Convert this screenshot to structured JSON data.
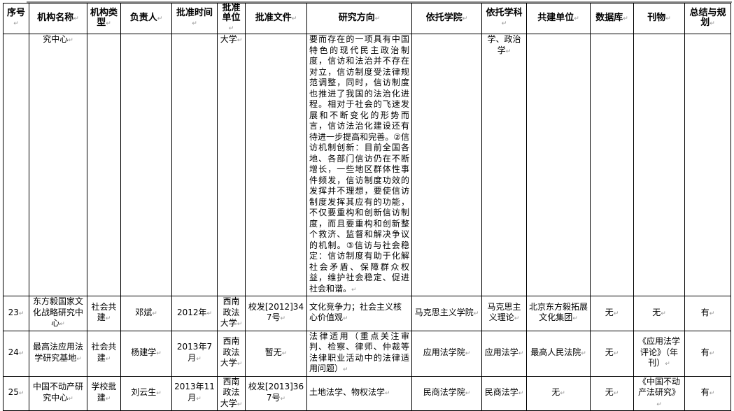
{
  "headers": [
    "序号",
    "机构名称",
    "机构类型",
    "负责人",
    "批准时间",
    "批准单位",
    "批准文件",
    "研究方向",
    "依托学院",
    "依托学科",
    "共建单位",
    "数据库",
    "刊物",
    "总结与规划"
  ],
  "rows": [
    {
      "no": "",
      "name": "究中心",
      "type": "",
      "leader": "",
      "time": "",
      "unit": "大学",
      "doc": "",
      "direction": "要而存在的一项具有中国特色的现代民主政治制度，信访和法治并不存在对立，信访制度受法律规范调整，同时，信访制度也推进了我国的法治化进程。相对于社会的飞速发展和不断变化的形势而言，信访法治化建设还有待进一步提高和完善。②信访机制创新：目前全国各地、各部门信访仍在不断增长，一些地区群体性事件频发，信访制度功效的发挥并不理想，要使信访制度发挥其应有的功能，不仅要重构和创新信访制度，而且要重构和创新整个救济、监督和解决争议的机制。③信访与社会稳定：信访制度有助于化解社会矛盾、保障群众权益，维护社会稳定、促进社会和谐。",
      "college": "",
      "discipline": "学、政治学",
      "partner": "",
      "database": "",
      "journal": "",
      "summary": ""
    },
    {
      "no": "23",
      "name": "东方毅国家文化战略研究中心",
      "type": "社会共建",
      "leader": "邓斌",
      "time": "2012年",
      "unit": "西南政法大学",
      "doc": "校发[2012]347号",
      "direction": "文化竞争力；社会主义核心价值观",
      "college": "马克思主义学院",
      "discipline": "马克思主义理论",
      "partner": "北京东方毅拓展文化集团",
      "database": "无",
      "journal": "无",
      "summary": "有"
    },
    {
      "no": "24",
      "name": "最高法应用法学研究基地",
      "type": "社会共建",
      "leader": "杨建学",
      "time": "2013年7月",
      "unit": "西南政法大学",
      "doc": "暂无",
      "direction": "法律适用（重点关注审判、检察、律师、仲裁等法律职业活动中的法律适用问题）",
      "college": "应用法学院",
      "discipline": "应用法学",
      "partner": "最高人民法院",
      "database": "无",
      "journal": "《应用法学评论》（年刊）",
      "summary": "有"
    },
    {
      "no": "25",
      "name": "中国不动产研究中心",
      "type": "学校批建",
      "leader": "刘云生",
      "time": "2013年11月",
      "unit": "西南政法大学",
      "doc": "校发[2013]367号",
      "direction": "土地法学、物权法学",
      "college": "民商法学院",
      "discipline": "民商法学",
      "partner": "无",
      "database": "无",
      "journal": "《中国不动产法研究》",
      "summary": "有"
    }
  ]
}
